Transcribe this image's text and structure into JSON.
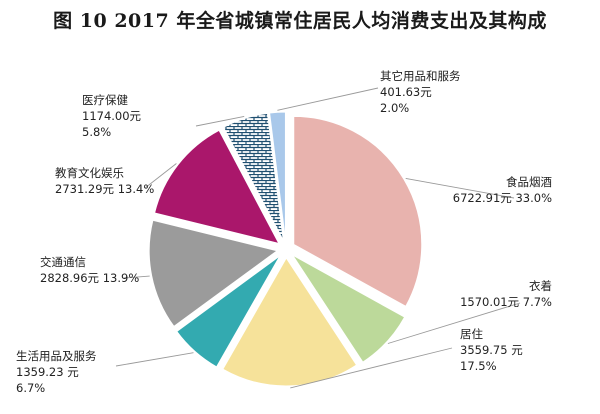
{
  "chart_data": {
    "type": "pie",
    "title": "图 10 2017 年全省城镇常住居民人均消费支出及其构成",
    "start_angle_deg": 0,
    "direction": "clockwise",
    "exploded": true,
    "slices": [
      {
        "name": "食品烟酒",
        "value": 6722.91,
        "value_label": "6722.91元",
        "percent_label": "33.0%",
        "color": "#e8b3ae",
        "pattern": "none"
      },
      {
        "name": "衣着",
        "value": 1570.01,
        "value_label": "1570.01元",
        "percent_label": "7.7%",
        "color": "#bcd99a",
        "pattern": "none"
      },
      {
        "name": "居住",
        "value": 3559.75,
        "value_label": "3559.75 元",
        "percent_label": "17.5%",
        "color": "#f6e29a",
        "pattern": "none"
      },
      {
        "name": "生活用品及服务",
        "value": 1359.23,
        "value_label": "1359.23 元",
        "percent_label": "6.7%",
        "color": "#33aab0",
        "pattern": "none"
      },
      {
        "name": "交通通信",
        "value": 2828.96,
        "value_label": "2828.96元",
        "percent_label": "13.9%",
        "color": "#9b9b9b",
        "pattern": "none"
      },
      {
        "name": "教育文化娱乐",
        "value": 2731.29,
        "value_label": "2731.29元",
        "percent_label": "13.4%",
        "color": "#aa176b",
        "pattern": "none"
      },
      {
        "name": "医疗保健",
        "value": 1174.0,
        "value_label": "1174.00元",
        "percent_label": "5.8%",
        "color": "#1f4f70",
        "pattern": "brick"
      },
      {
        "name": "其它用品和服务",
        "value": 401.63,
        "value_label": "401.63元",
        "percent_label": "2.0%",
        "color": "#a9c8ea",
        "pattern": "none"
      }
    ]
  }
}
